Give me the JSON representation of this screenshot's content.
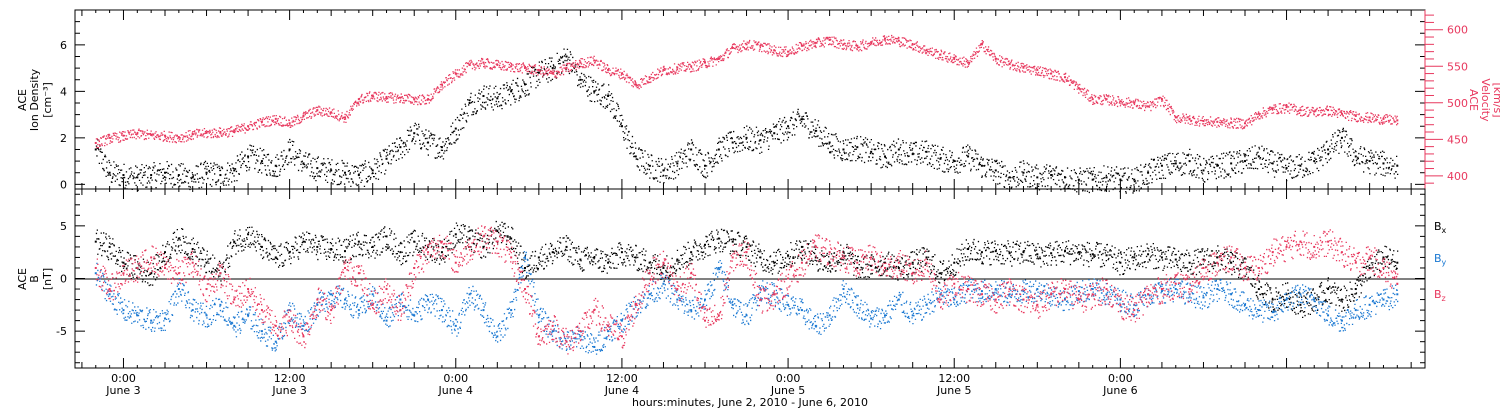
{
  "chart_data": [
    {
      "type": "scatter",
      "panel": "top",
      "ylabel_left": [
        "ACE",
        "Ion Density",
        "[cm⁻³]"
      ],
      "ylabel_right": [
        "ACE",
        "Velocity",
        "[km/s]"
      ],
      "left_axis": {
        "ylim": [
          -0.2,
          7.5
        ],
        "ticks": [
          0,
          2,
          4,
          6
        ]
      },
      "right_axis": {
        "ylim": [
          382,
          627
        ],
        "ticks": [
          400,
          450,
          500,
          550,
          600
        ]
      },
      "series": [
        {
          "axis": "left",
          "color": "#000000",
          "x": [
            -2,
            -1,
            0,
            1,
            2,
            3,
            4,
            5,
            6,
            7,
            8,
            9,
            10,
            11,
            12,
            13,
            14,
            15,
            16,
            17,
            18,
            19,
            20,
            21,
            22,
            23,
            24,
            25,
            26,
            27,
            28,
            29,
            30,
            31,
            32,
            33,
            34,
            35,
            36,
            37,
            38,
            39,
            40,
            41,
            42,
            43,
            44,
            45,
            46,
            47,
            48,
            49,
            50,
            51,
            52,
            53,
            54,
            55,
            56,
            57,
            58,
            59,
            60,
            61,
            62,
            63,
            64,
            65,
            66,
            67,
            68,
            69,
            70,
            71,
            72,
            73,
            74,
            75,
            76,
            77,
            78,
            79,
            80,
            81,
            82,
            83,
            84,
            85,
            86,
            87,
            88,
            89,
            90,
            91,
            92
          ],
          "values": [
            1.5,
            0.5,
            0.4,
            0.3,
            0.4,
            0.5,
            0.4,
            0.3,
            0.5,
            0.4,
            0.6,
            1.2,
            1.0,
            0.8,
            1.5,
            0.9,
            0.7,
            0.6,
            0.5,
            0.4,
            0.6,
            1.1,
            1.6,
            2.2,
            1.8,
            1.6,
            2.4,
            3.5,
            3.8,
            3.7,
            4.0,
            4.3,
            4.8,
            5.0,
            5.5,
            4.5,
            4.0,
            3.8,
            2.5,
            1.2,
            0.8,
            0.6,
            0.9,
            1.5,
            0.8,
            1.5,
            1.8,
            2.0,
            1.9,
            2.2,
            2.5,
            2.8,
            2.3,
            1.8,
            1.5,
            1.6,
            1.4,
            1.2,
            1.5,
            1.3,
            1.4,
            1.1,
            1.0,
            1.2,
            0.8,
            0.6,
            0.3,
            0.5,
            0.3,
            0.4,
            0.3,
            0.2,
            0.2,
            0.3,
            0.2,
            0.2,
            0.5,
            0.8,
            0.9,
            1.0,
            0.6,
            0.8,
            0.9,
            1.0,
            1.2,
            0.9,
            0.7,
            0.8,
            1.0,
            1.5,
            2.0,
            1.2,
            1.0,
            0.9,
            0.8
          ]
        },
        {
          "axis": "right",
          "color": "#e8385e",
          "x": [
            -2,
            -1,
            0,
            1,
            2,
            3,
            4,
            5,
            6,
            7,
            8,
            9,
            10,
            11,
            12,
            13,
            14,
            15,
            16,
            17,
            18,
            19,
            20,
            21,
            22,
            23,
            24,
            25,
            26,
            27,
            28,
            29,
            30,
            31,
            32,
            33,
            34,
            35,
            36,
            37,
            38,
            39,
            40,
            41,
            42,
            43,
            44,
            45,
            46,
            47,
            48,
            49,
            50,
            51,
            52,
            53,
            54,
            55,
            56,
            57,
            58,
            59,
            60,
            61,
            62,
            63,
            64,
            65,
            66,
            67,
            68,
            69,
            70,
            71,
            72,
            73,
            74,
            75,
            76,
            77,
            78,
            79,
            80,
            81,
            82,
            83,
            84,
            85,
            86,
            87,
            88,
            89,
            90,
            91,
            92
          ],
          "values": [
            445,
            452,
            455,
            458,
            456,
            455,
            453,
            457,
            459,
            460,
            462,
            468,
            474,
            478,
            472,
            482,
            490,
            487,
            480,
            505,
            510,
            508,
            507,
            505,
            505,
            525,
            540,
            552,
            555,
            552,
            550,
            548,
            545,
            540,
            548,
            555,
            558,
            545,
            540,
            525,
            535,
            545,
            548,
            550,
            555,
            560,
            575,
            580,
            578,
            572,
            570,
            578,
            582,
            586,
            580,
            578,
            583,
            588,
            585,
            580,
            572,
            566,
            560,
            555,
            580,
            560,
            553,
            548,
            545,
            540,
            535,
            520,
            505,
            505,
            502,
            500,
            495,
            505,
            480,
            478,
            475,
            474,
            473,
            472,
            485,
            492,
            494,
            490,
            488,
            490,
            485,
            482,
            480,
            478,
            476
          ]
        }
      ]
    },
    {
      "type": "scatter",
      "panel": "bottom",
      "ylabel_left": [
        "ACE",
        "B",
        "[nT]"
      ],
      "ylim": [
        -8.5,
        8.5
      ],
      "ticks": [
        -5,
        0,
        5
      ],
      "legend": [
        {
          "label": "B",
          "sub": "x",
          "color": "#000000"
        },
        {
          "label": "B",
          "sub": "y",
          "color": "#1a78d2"
        },
        {
          "label": "B",
          "sub": "z",
          "color": "#e8385e"
        }
      ],
      "series": [
        {
          "name": "Bx",
          "color": "#000000",
          "x": [
            -2,
            -1,
            0,
            1,
            2,
            3,
            4,
            5,
            6,
            7,
            8,
            9,
            10,
            11,
            12,
            13,
            14,
            15,
            16,
            17,
            18,
            19,
            20,
            21,
            22,
            23,
            24,
            25,
            26,
            27,
            28,
            29,
            30,
            31,
            32,
            33,
            34,
            35,
            36,
            37,
            38,
            39,
            40,
            41,
            42,
            43,
            44,
            45,
            46,
            47,
            48,
            49,
            50,
            51,
            52,
            53,
            54,
            55,
            56,
            57,
            58,
            59,
            60,
            61,
            62,
            63,
            64,
            65,
            66,
            67,
            68,
            69,
            70,
            71,
            72,
            73,
            74,
            75,
            76,
            77,
            78,
            79,
            80,
            81,
            82,
            83,
            84,
            85,
            86,
            87,
            88,
            89,
            90,
            91,
            92
          ],
          "values": [
            3.5,
            3.0,
            1.5,
            1.0,
            0.5,
            2.5,
            3.8,
            2.8,
            1.5,
            0.5,
            3.5,
            4.2,
            3.0,
            2.0,
            2.5,
            3.5,
            3.0,
            2.8,
            2.6,
            3.5,
            3.0,
            4.0,
            2.5,
            3.5,
            3.0,
            2.5,
            4.2,
            3.8,
            3.0,
            4.5,
            3.8,
            1.0,
            2.0,
            2.5,
            3.0,
            1.8,
            2.0,
            1.5,
            2.5,
            2.0,
            1.5,
            1.0,
            1.8,
            2.5,
            3.2,
            3.8,
            3.5,
            3.0,
            2.0,
            1.5,
            2.2,
            3.0,
            2.0,
            1.5,
            2.5,
            1.0,
            1.2,
            1.5,
            1.0,
            1.5,
            2.0,
            0.5,
            1.5,
            2.8,
            2.5,
            2.6,
            2.4,
            2.5,
            2.3,
            2.4,
            2.6,
            2.5,
            2.3,
            2.2,
            1.5,
            2.0,
            2.3,
            2.0,
            1.8,
            1.5,
            1.8,
            2.0,
            1.5,
            1.0,
            -1.0,
            -2.0,
            -1.5,
            -2.5,
            -2.0,
            -1.0,
            -2.0,
            -1.0,
            1.0,
            2.0,
            1.5
          ]
        },
        {
          "name": "By",
          "color": "#1a78d2",
          "x": [
            -2,
            -1,
            0,
            1,
            2,
            3,
            4,
            5,
            6,
            7,
            8,
            9,
            10,
            11,
            12,
            13,
            14,
            15,
            16,
            17,
            18,
            19,
            20,
            21,
            22,
            23,
            24,
            25,
            26,
            27,
            28,
            29,
            30,
            31,
            32,
            33,
            34,
            35,
            36,
            37,
            38,
            39,
            40,
            41,
            42,
            43,
            44,
            45,
            46,
            47,
            48,
            49,
            50,
            51,
            52,
            53,
            54,
            55,
            56,
            57,
            58,
            59,
            60,
            61,
            62,
            63,
            64,
            65,
            66,
            67,
            68,
            69,
            70,
            71,
            72,
            73,
            74,
            75,
            76,
            77,
            78,
            79,
            80,
            81,
            82,
            83,
            84,
            85,
            86,
            87,
            88,
            89,
            90,
            91,
            92
          ],
          "values": [
            0.5,
            -1.5,
            -3.0,
            -3.5,
            -4.0,
            -3.8,
            -1.0,
            -3.0,
            -3.5,
            -2.5,
            -4.5,
            -3.5,
            -5.0,
            -6.0,
            -3.0,
            -4.5,
            -2.5,
            -1.5,
            -2.0,
            -3.0,
            -1.5,
            -4.0,
            -2.0,
            -3.5,
            -2.0,
            -3.0,
            -4.5,
            -1.5,
            -3.0,
            -5.5,
            -3.0,
            2.0,
            -3.5,
            -5.0,
            -6.0,
            -5.5,
            -6.5,
            -5.0,
            -4.0,
            -2.5,
            -1.5,
            -0.5,
            -2.0,
            -3.0,
            -2.0,
            1.0,
            -2.5,
            -3.5,
            -1.0,
            -1.5,
            -2.5,
            -3.0,
            -4.5,
            -3.5,
            -1.0,
            -2.5,
            -3.8,
            -3.5,
            -2.0,
            -3.5,
            -2.5,
            -1.5,
            -2.0,
            -1.0,
            -1.2,
            -1.0,
            -1.5,
            -1.2,
            -1.0,
            -1.5,
            -2.0,
            -1.2,
            -1.0,
            -1.5,
            -2.0,
            -2.5,
            -1.5,
            -1.2,
            -1.0,
            -1.5,
            -1.8,
            -1.0,
            -1.5,
            -2.5,
            -3.0,
            -3.2,
            -2.0,
            -1.5,
            -2.0,
            -3.5,
            -4.0,
            -3.0,
            -2.5,
            -2.0,
            -1.5
          ]
        },
        {
          "name": "Bz",
          "color": "#e8385e",
          "x": [
            -2,
            -1,
            0,
            1,
            2,
            3,
            4,
            5,
            6,
            7,
            8,
            9,
            10,
            11,
            12,
            13,
            14,
            15,
            16,
            17,
            18,
            19,
            20,
            21,
            22,
            23,
            24,
            25,
            26,
            27,
            28,
            29,
            30,
            31,
            32,
            33,
            34,
            35,
            36,
            37,
            38,
            39,
            40,
            41,
            42,
            43,
            44,
            45,
            46,
            47,
            48,
            49,
            50,
            51,
            52,
            53,
            54,
            55,
            56,
            57,
            58,
            59,
            60,
            61,
            62,
            63,
            64,
            65,
            66,
            67,
            68,
            69,
            70,
            71,
            72,
            73,
            74,
            75,
            76,
            77,
            78,
            79,
            80,
            81,
            82,
            83,
            84,
            85,
            86,
            87,
            88,
            89,
            90,
            91,
            92
          ],
          "values": [
            1.0,
            -1.0,
            0.5,
            1.0,
            2.0,
            1.0,
            0.5,
            1.5,
            -1.0,
            0.5,
            -2.0,
            -1.0,
            -3.0,
            -4.5,
            -4.0,
            -5.5,
            -2.0,
            -3.0,
            1.0,
            0.5,
            -2.5,
            -1.0,
            -3.0,
            1.0,
            2.5,
            3.5,
            1.5,
            3.0,
            4.0,
            3.5,
            2.0,
            -1.0,
            -5.5,
            -4.5,
            -6.0,
            -5.0,
            -3.0,
            -4.5,
            -5.5,
            -2.5,
            0.5,
            1.5,
            -1.0,
            0.5,
            -4.0,
            -3.5,
            2.0,
            2.5,
            -2.0,
            -1.5,
            0.0,
            1.5,
            3.0,
            2.5,
            2.0,
            1.5,
            2.0,
            1.0,
            1.5,
            0.5,
            1.5,
            -2.0,
            -0.5,
            -1.0,
            -1.5,
            -2.0,
            -1.0,
            -2.0,
            -2.5,
            -1.5,
            -1.0,
            -2.0,
            -1.5,
            -1.0,
            -2.5,
            -3.0,
            -1.5,
            -1.0,
            -0.5,
            -1.0,
            1.0,
            1.5,
            2.0,
            1.0,
            1.0,
            2.5,
            3.0,
            3.5,
            3.0,
            3.5,
            2.5,
            1.5,
            2.0,
            1.0,
            -0.5
          ]
        }
      ]
    }
  ],
  "x_axis": {
    "range_hours": [
      -3.5,
      94
    ],
    "ticks": [
      {
        "hours": 0,
        "time": "0:00",
        "date": "June 3"
      },
      {
        "hours": 12,
        "time": "12:00",
        "date": "June 3"
      },
      {
        "hours": 24,
        "time": "0:00",
        "date": "June 4"
      },
      {
        "hours": 36,
        "time": "12:00",
        "date": "June 4"
      },
      {
        "hours": 48,
        "time": "0:00",
        "date": "June 5"
      },
      {
        "hours": 60,
        "time": "12:00",
        "date": "June 5"
      },
      {
        "hours": 72,
        "time": "0:00",
        "date": "June 6"
      }
    ],
    "title": "hours:minutes, June  2, 2010 - June  6, 2010"
  }
}
